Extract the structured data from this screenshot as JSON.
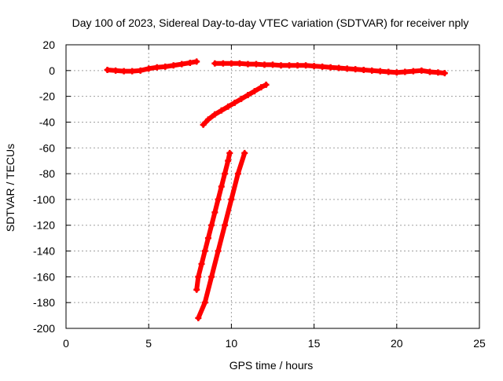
{
  "chart_data": {
    "type": "scatter",
    "title": "Day 100 of 2023, Sidereal Day-to-day VTEC variation (SDTVAR) for receiver nply",
    "xlabel": "GPS time / hours",
    "ylabel": "SDTVAR / TECUs",
    "xlim": [
      0,
      25
    ],
    "ylim": [
      -200,
      20
    ],
    "xticks": [
      0,
      5,
      10,
      15,
      20,
      25
    ],
    "yticks": [
      20,
      0,
      -20,
      -40,
      -60,
      -80,
      -100,
      -120,
      -140,
      -160,
      -180,
      -200
    ],
    "grid": true,
    "marker": "plus",
    "colors": {
      "series": "#ff0000",
      "grid": "#a0a0a0",
      "axes": "#000000"
    },
    "series": [
      {
        "x": [
          2.5,
          3.0,
          3.5,
          4.0,
          4.5,
          5.0,
          5.5,
          6.0,
          6.5,
          7.0,
          7.5,
          7.9
        ],
        "y": [
          0.5,
          0,
          -0.5,
          -0.5,
          0,
          1.5,
          2.5,
          3,
          4,
          5,
          6,
          7
        ]
      },
      {
        "x": [
          9.0,
          9.5,
          10.0,
          10.5,
          11.0,
          11.5,
          12.0,
          12.5,
          13.0,
          13.5,
          14.0,
          14.5,
          15.0,
          15.5,
          16.0,
          16.5,
          17.0,
          17.5,
          18.0,
          18.5,
          19.0,
          19.5,
          20.0,
          20.5,
          21.0,
          21.5,
          22.0,
          22.5,
          22.9
        ],
        "y": [
          5.5,
          5.5,
          5.5,
          5.5,
          5,
          5,
          4.5,
          4.5,
          4,
          4,
          4,
          4,
          3.5,
          3,
          2.5,
          2,
          1.5,
          1,
          0.5,
          0,
          -0.5,
          -1,
          -1.5,
          -1,
          -0.5,
          0,
          -1,
          -1.5,
          -2
        ]
      },
      {
        "x": [
          8.3,
          8.6,
          9.0,
          9.4,
          9.8,
          10.2,
          10.6,
          11.0,
          11.4,
          11.8,
          12.1
        ],
        "y": [
          -42,
          -38,
          -34,
          -31,
          -28,
          -25,
          -22,
          -19,
          -16,
          -13,
          -11
        ]
      },
      {
        "x": [
          7.9,
          8.0,
          8.2,
          8.4,
          8.6,
          8.8,
          9.0,
          9.2,
          9.4,
          9.6,
          9.8,
          9.9
        ],
        "y": [
          -170,
          -160,
          -150,
          -140,
          -130,
          -120,
          -110,
          -100,
          -90,
          -80,
          -70,
          -64
        ]
      },
      {
        "x": [
          8.0,
          8.4,
          8.8,
          9.2,
          9.6,
          10.0,
          10.4,
          10.8
        ],
        "y": [
          -192,
          -180,
          -160,
          -140,
          -120,
          -100,
          -80,
          -64
        ]
      }
    ]
  }
}
